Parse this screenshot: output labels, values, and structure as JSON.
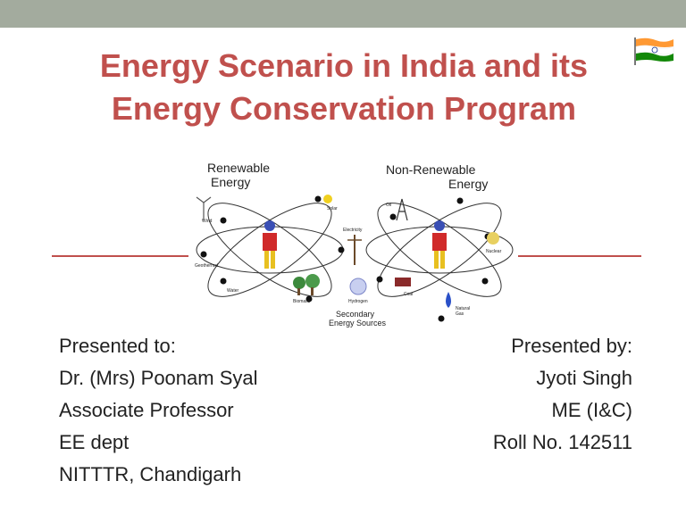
{
  "slide": {
    "title_line1": "Energy Scenario in India and its",
    "title_line2": "Energy Conservation Program"
  },
  "diagram": {
    "renewable_line1": "Renewable",
    "renewable_line2": "Energy",
    "nonrenewable_line1": "Non-Renewable",
    "nonrenewable_line2": "Energy",
    "secondary_line1": "Secondary",
    "secondary_line2": "Energy Sources",
    "labels": {
      "wind": "Wind",
      "solar": "Solar",
      "geothermal": "Geothermal",
      "water": "Water",
      "biomass": "Biomass",
      "electricity": "Electricity",
      "hydrogen": "Hydrogen",
      "oil": "Oil",
      "nuclear": "Nuclear",
      "coal": "Coal",
      "natural_gas_1": "Natural",
      "natural_gas_2": "Gas"
    }
  },
  "presented_to": {
    "heading": "Presented to:",
    "name": "Dr. (Mrs) Poonam Syal",
    "designation": "Associate Professor",
    "department": "EE dept",
    "institute": "NITTTR, Chandigarh"
  },
  "presented_by": {
    "heading": "Presented by:",
    "name": "Jyoti Singh",
    "course": "ME (I&C)",
    "roll": "Roll No. 142511"
  },
  "colors": {
    "title": "#c0504d",
    "top_bar": "#a3ab9e",
    "saffron": "#ff9933",
    "green": "#138808"
  }
}
